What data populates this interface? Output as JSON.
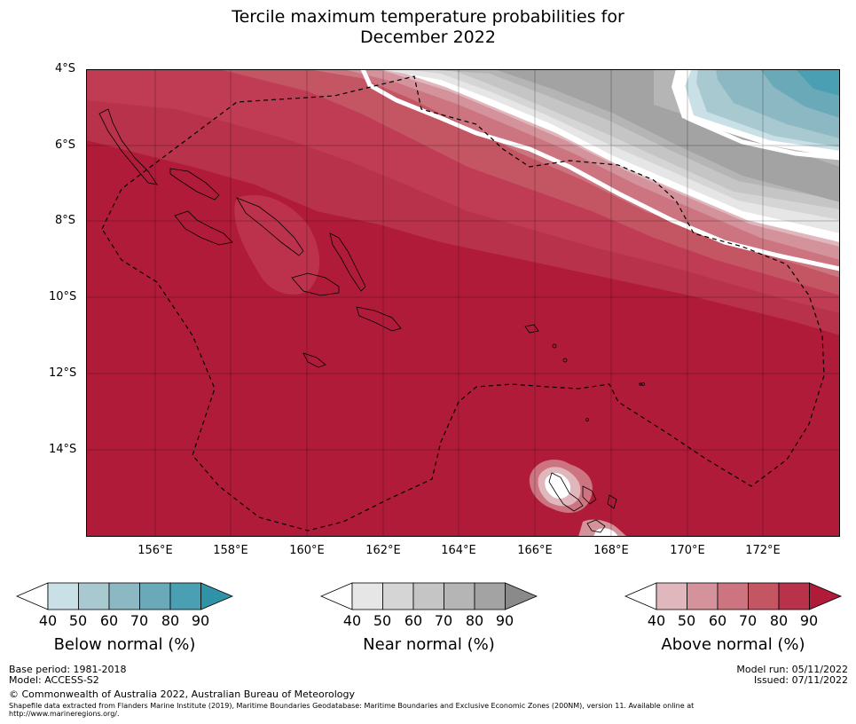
{
  "title": {
    "line1": "Tercile maximum temperature probabilities for",
    "line2": "December 2022"
  },
  "map": {
    "lat_labels": [
      "4°S",
      "6°S",
      "8°S",
      "10°S",
      "12°S",
      "14°S"
    ],
    "lon_labels": [
      "156°E",
      "158°E",
      "160°E",
      "162°E",
      "164°E",
      "166°E",
      "168°E",
      "170°E",
      "172°E"
    ],
    "lat_range": [
      -16.3,
      -4.0
    ],
    "lon_range": [
      154.2,
      174.1
    ]
  },
  "colorbars": [
    {
      "name": "below",
      "label": "Below normal (%)",
      "ticks": [
        "40",
        "50",
        "60",
        "70",
        "80",
        "90"
      ],
      "colors": [
        "#ffffff",
        "#c9e0e6",
        "#a8c9d0",
        "#8cb8c3",
        "#6aa9b7",
        "#4a9fb2",
        "#2f92a6"
      ]
    },
    {
      "name": "near",
      "label": "Near normal (%)",
      "ticks": [
        "40",
        "50",
        "60",
        "70",
        "80",
        "90"
      ],
      "colors": [
        "#ffffff",
        "#e6e6e6",
        "#d5d5d5",
        "#c5c5c5",
        "#b5b5b5",
        "#a3a3a3",
        "#8a8a8a"
      ]
    },
    {
      "name": "above",
      "label": "Above normal (%)",
      "ticks": [
        "40",
        "50",
        "60",
        "70",
        "80",
        "90"
      ],
      "colors": [
        "#ffffff",
        "#e0b7bd",
        "#d4929b",
        "#cc747f",
        "#c45563",
        "#b7324a",
        "#b11b3a"
      ]
    }
  ],
  "footer": {
    "base_period": "Base period: 1981-2018",
    "model": "Model: ACCESS-S2",
    "model_run": "Model run: 05/11/2022",
    "issued": "Issued: 07/11/2022",
    "copyright": "© Commonwealth of Australia 2022, Australian Bureau of Meteorology",
    "shapefile_line1": "Shapefile data extracted from Flanders Marine Institute (2019), Maritime Boundaries Geodatabase: Maritime Boundaries and Exclusive Economic Zones (200NM), version 11. Available online at",
    "shapefile_line2": "http://www.marineregions.org/."
  }
}
